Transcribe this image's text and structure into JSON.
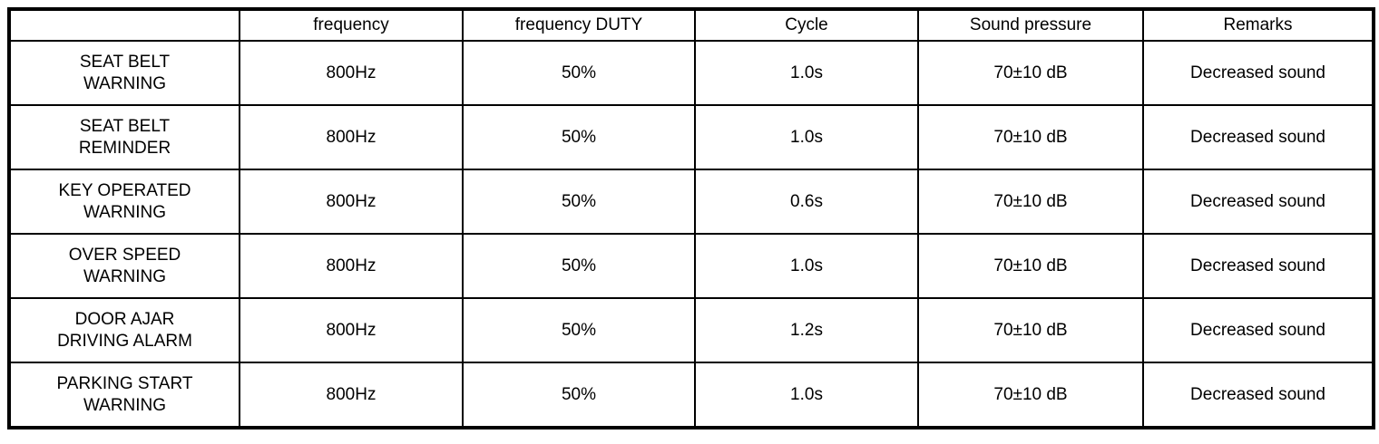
{
  "table": {
    "headers": [
      "",
      "frequency",
      "frequency DUTY",
      "Cycle",
      "Sound pressure",
      "Remarks"
    ],
    "rows": [
      [
        "SEAT BELT\nWARNING",
        "800Hz",
        "50%",
        "1.0s",
        "70±10 dB",
        "Decreased sound"
      ],
      [
        "SEAT BELT\nREMINDER",
        "800Hz",
        "50%",
        "1.0s",
        "70±10 dB",
        "Decreased sound"
      ],
      [
        "KEY OPERATED\nWARNING",
        "800Hz",
        "50%",
        "0.6s",
        "70±10 dB",
        "Decreased sound"
      ],
      [
        "OVER SPEED\nWARNING",
        "800Hz",
        "50%",
        "1.0s",
        "70±10 dB",
        "Decreased sound"
      ],
      [
        "DOOR AJAR\nDRIVING ALARM",
        "800Hz",
        "50%",
        "1.2s",
        "70±10 dB",
        "Decreased sound"
      ],
      [
        "PARKING START\nWARNING",
        "800Hz",
        "50%",
        "1.0s",
        "70±10 dB",
        "Decreased sound"
      ]
    ],
    "colors": {
      "border": "#000000",
      "background": "#ffffff",
      "text": "#000000"
    }
  }
}
